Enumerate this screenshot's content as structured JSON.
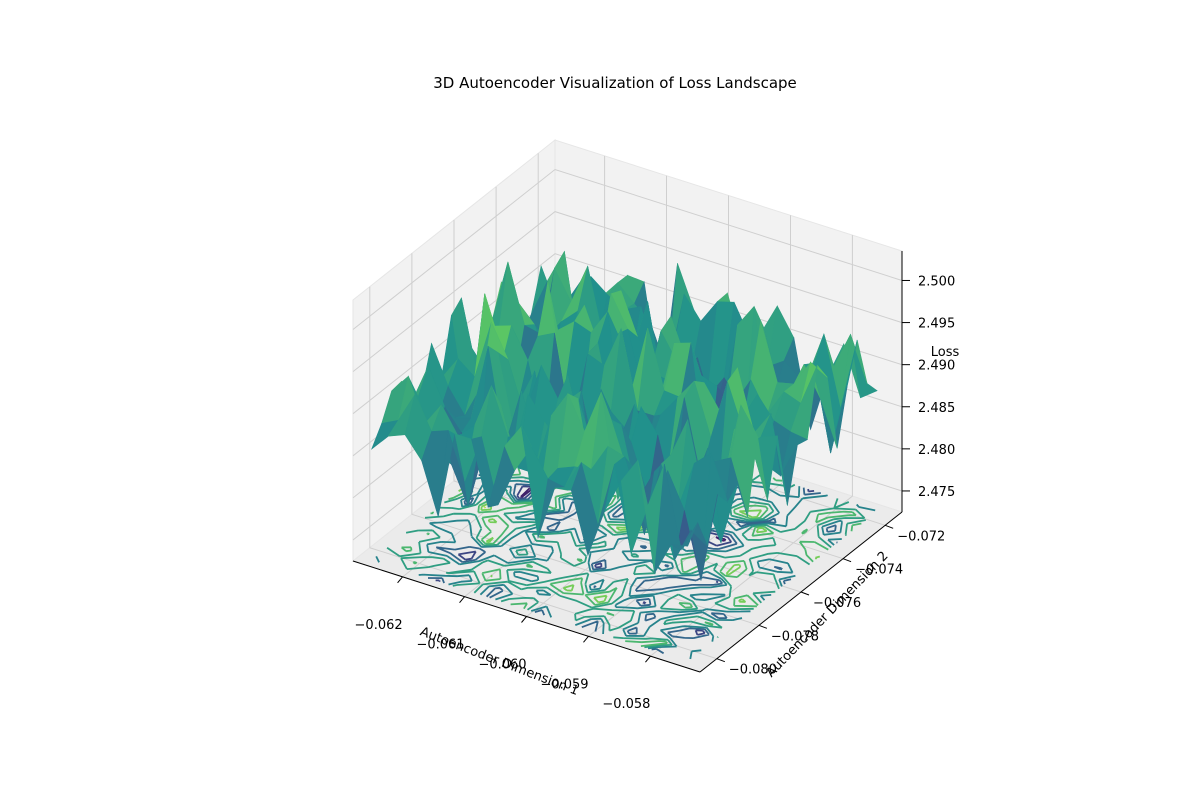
{
  "chart_data": {
    "type": "surface3d",
    "title": "3D Autoencoder Visualization of Loss Landscape",
    "xlabel": "Autoencoder Dimension 1",
    "ylabel": "Autoencoder Dimension 2",
    "zlabel": "Loss",
    "xlim": [
      -0.0628,
      -0.0572
    ],
    "ylim": [
      -0.0808,
      -0.0712
    ],
    "zlim": [
      2.4725,
      2.5035
    ],
    "xticks": [
      -0.062,
      -0.061,
      -0.06,
      -0.059,
      -0.058
    ],
    "yticks": [
      -0.08,
      -0.078,
      -0.076,
      -0.074,
      -0.072
    ],
    "zticks": [
      2.475,
      2.48,
      2.485,
      2.49,
      2.495,
      2.5
    ],
    "xtick_labels": [
      "−0.062",
      "−0.061",
      "−0.060",
      "−0.059",
      "−0.058"
    ],
    "ytick_labels": [
      "−0.080",
      "−0.078",
      "−0.076",
      "−0.074",
      "−0.072"
    ],
    "ztick_labels": [
      "2.475",
      "2.480",
      "2.485",
      "2.490",
      "2.495",
      "2.500"
    ],
    "x_range": [
      -0.0626,
      -0.0575
    ],
    "y_range": [
      -0.0805,
      -0.0715
    ],
    "grid_size": 20,
    "z_center": 2.488,
    "z_amplitude": 0.012,
    "colormap": [
      "#440154",
      "#3b528b",
      "#21918c",
      "#5ec962",
      "#fde725"
    ],
    "contour_projection": true,
    "grid": true
  }
}
